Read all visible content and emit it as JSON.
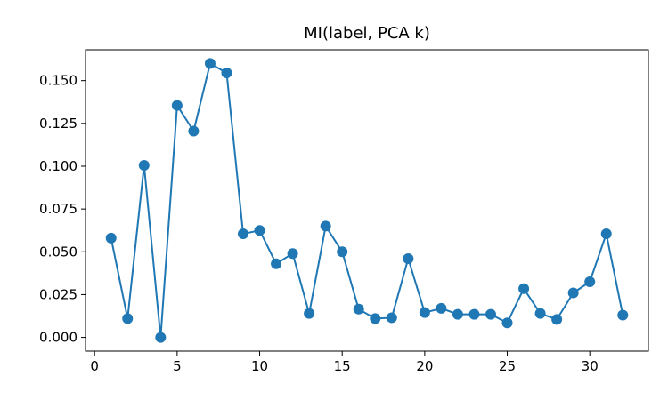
{
  "chart_data": {
    "type": "line",
    "title": "MI(label, PCA k)",
    "xlabel": "",
    "ylabel": "",
    "xlim": [
      -0.55,
      33.55
    ],
    "ylim": [
      -0.008,
      0.168
    ],
    "x_ticks": [
      0,
      5,
      10,
      15,
      20,
      25,
      30
    ],
    "x_tick_labels": [
      "0",
      "5",
      "10",
      "15",
      "20",
      "25",
      "30"
    ],
    "y_ticks": [
      0.0,
      0.025,
      0.05,
      0.075,
      0.1,
      0.125,
      0.15
    ],
    "y_tick_labels": [
      "0.000",
      "0.025",
      "0.050",
      "0.075",
      "0.100",
      "0.125",
      "0.150"
    ],
    "grid": false,
    "series": [
      {
        "color": "#1f77b4",
        "marker": "circle",
        "x": [
          1,
          2,
          3,
          4,
          5,
          6,
          7,
          8,
          9,
          10,
          11,
          12,
          13,
          14,
          15,
          16,
          17,
          18,
          19,
          20,
          21,
          22,
          23,
          24,
          25,
          26,
          27,
          28,
          29,
          30,
          31,
          32
        ],
        "values": [
          0.058,
          0.011,
          0.1005,
          0.0,
          0.1355,
          0.1205,
          0.16,
          0.1545,
          0.0605,
          0.0625,
          0.043,
          0.049,
          0.014,
          0.065,
          0.05,
          0.0165,
          0.011,
          0.0115,
          0.046,
          0.0145,
          0.017,
          0.0135,
          0.0135,
          0.0135,
          0.0085,
          0.0285,
          0.014,
          0.0105,
          0.026,
          0.0325,
          0.0605,
          0.013
        ]
      }
    ]
  }
}
